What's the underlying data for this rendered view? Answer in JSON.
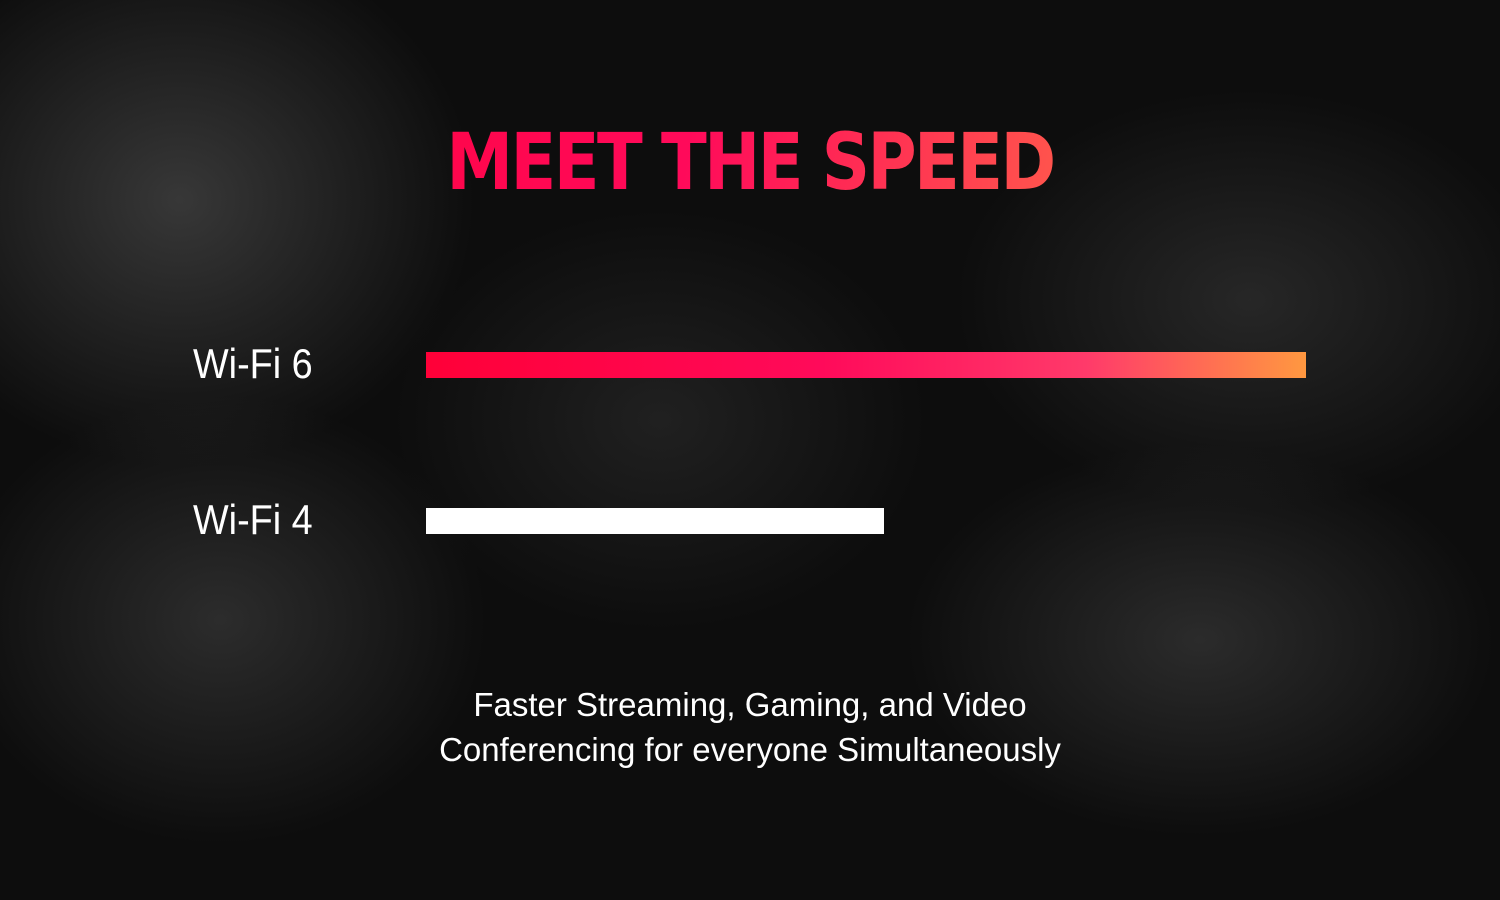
{
  "title": "MEET THE SPEED",
  "caption": {
    "line1": "Faster Streaming, Gaming, and Video",
    "line2": "Conferencing for everyone Simultaneously"
  },
  "colors": {
    "gradient_start": "#ff0038",
    "gradient_mid": "#ff0a5a",
    "gradient_end": "#ff9840",
    "wifi4_bar": "#ffffff"
  },
  "chart_data": {
    "type": "bar",
    "orientation": "horizontal",
    "categories": [
      "Wi-Fi 6",
      "Wi-Fi 4"
    ],
    "values": [
      1.0,
      0.52
    ],
    "value_unit": "relative speed (unlabeled)",
    "grid": false
  }
}
